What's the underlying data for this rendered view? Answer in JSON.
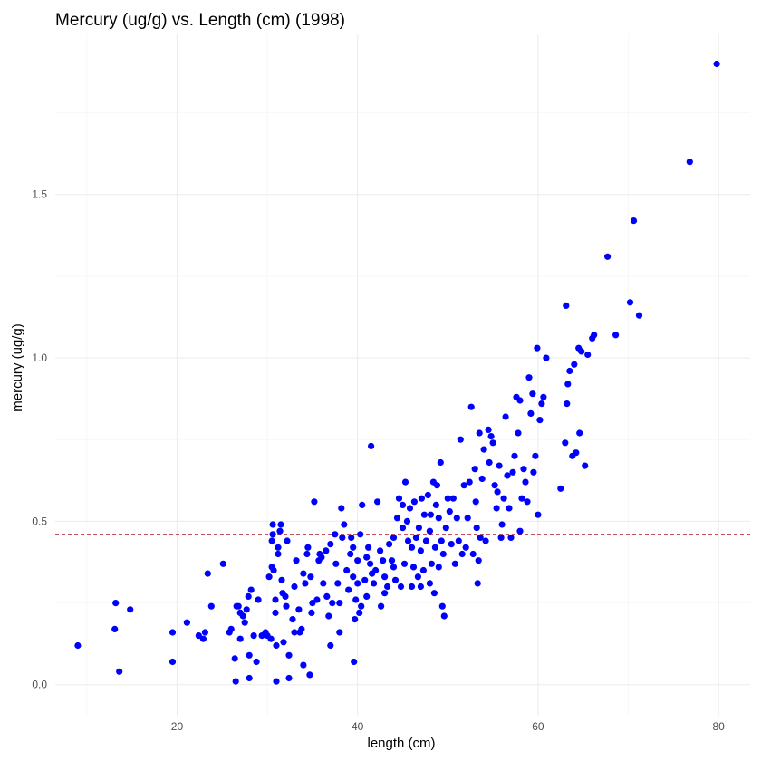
{
  "chart_data": {
    "type": "scatter",
    "title": "Mercury (ug/g) vs. Length (cm) (1998)",
    "xlabel": "length (cm)",
    "ylabel": "mercury (ug/g)",
    "xlim": [
      6.5,
      83.5
    ],
    "ylim": [
      -0.095,
      1.99
    ],
    "x_ticks": [
      20,
      40,
      60,
      80
    ],
    "x_tick_labels": [
      "20",
      "40",
      "60",
      "80"
    ],
    "y_ticks": [
      0.0,
      0.5,
      1.0,
      1.5
    ],
    "y_tick_labels": [
      "0.0",
      "0.5",
      "1.0",
      "1.5"
    ],
    "grid": true,
    "legend": "none",
    "point_color": "#0000ff",
    "reference_line": {
      "orientation": "horizontal",
      "y": 0.46,
      "color": "#b2182b",
      "style": "dashed"
    },
    "points": [
      [
        9.0,
        0.12
      ],
      [
        13.2,
        0.25
      ],
      [
        13.1,
        0.17
      ],
      [
        13.6,
        0.04
      ],
      [
        14.8,
        0.23
      ],
      [
        19.5,
        0.16
      ],
      [
        19.5,
        0.07
      ],
      [
        21.1,
        0.19
      ],
      [
        22.4,
        0.15
      ],
      [
        22.9,
        0.14
      ],
      [
        23.1,
        0.16
      ],
      [
        23.4,
        0.34
      ],
      [
        23.8,
        0.24
      ],
      [
        25.1,
        0.37
      ],
      [
        25.8,
        0.16
      ],
      [
        26.0,
        0.17
      ],
      [
        26.4,
        0.08
      ],
      [
        26.5,
        0.01
      ],
      [
        26.6,
        0.24
      ],
      [
        26.8,
        0.24
      ],
      [
        27.0,
        0.14
      ],
      [
        27.0,
        0.22
      ],
      [
        27.3,
        0.21
      ],
      [
        27.5,
        0.19
      ],
      [
        27.7,
        0.23
      ],
      [
        27.9,
        0.27
      ],
      [
        28.0,
        0.09
      ],
      [
        28.0,
        0.02
      ],
      [
        28.2,
        0.29
      ],
      [
        28.5,
        0.15
      ],
      [
        28.8,
        0.07
      ],
      [
        29.0,
        0.26
      ],
      [
        29.4,
        0.15
      ],
      [
        29.8,
        0.16
      ],
      [
        30.0,
        0.15
      ],
      [
        30.2,
        0.33
      ],
      [
        30.4,
        0.14
      ],
      [
        30.5,
        0.36
      ],
      [
        30.5,
        0.44
      ],
      [
        30.6,
        0.46
      ],
      [
        30.6,
        0.49
      ],
      [
        30.7,
        0.35
      ],
      [
        30.9,
        0.26
      ],
      [
        30.9,
        0.22
      ],
      [
        31.0,
        0.12
      ],
      [
        31.0,
        0.01
      ],
      [
        31.2,
        0.4
      ],
      [
        31.2,
        0.42
      ],
      [
        31.4,
        0.47
      ],
      [
        31.5,
        0.49
      ],
      [
        31.6,
        0.32
      ],
      [
        31.7,
        0.28
      ],
      [
        31.8,
        0.13
      ],
      [
        32.0,
        0.27
      ],
      [
        32.1,
        0.24
      ],
      [
        32.2,
        0.44
      ],
      [
        32.4,
        0.02
      ],
      [
        32.4,
        0.09
      ],
      [
        32.8,
        0.2
      ],
      [
        33.0,
        0.16
      ],
      [
        33.0,
        0.3
      ],
      [
        33.2,
        0.38
      ],
      [
        33.5,
        0.23
      ],
      [
        33.6,
        0.16
      ],
      [
        33.8,
        0.17
      ],
      [
        34.0,
        0.34
      ],
      [
        34.0,
        0.06
      ],
      [
        34.2,
        0.31
      ],
      [
        34.4,
        0.4
      ],
      [
        34.5,
        0.42
      ],
      [
        34.7,
        0.03
      ],
      [
        34.8,
        0.33
      ],
      [
        34.9,
        0.22
      ],
      [
        35.0,
        0.25
      ],
      [
        35.2,
        0.56
      ],
      [
        35.5,
        0.26
      ],
      [
        35.7,
        0.38
      ],
      [
        35.8,
        0.4
      ],
      [
        36.0,
        0.39
      ],
      [
        36.2,
        0.31
      ],
      [
        36.5,
        0.41
      ],
      [
        36.6,
        0.27
      ],
      [
        36.8,
        0.21
      ],
      [
        37.0,
        0.43
      ],
      [
        37.0,
        0.12
      ],
      [
        37.2,
        0.25
      ],
      [
        37.5,
        0.46
      ],
      [
        37.6,
        0.37
      ],
      [
        37.8,
        0.31
      ],
      [
        38.0,
        0.16
      ],
      [
        38.0,
        0.25
      ],
      [
        38.2,
        0.54
      ],
      [
        38.3,
        0.45
      ],
      [
        38.5,
        0.49
      ],
      [
        38.8,
        0.35
      ],
      [
        39.0,
        0.29
      ],
      [
        39.2,
        0.4
      ],
      [
        39.3,
        0.45
      ],
      [
        39.5,
        0.33
      ],
      [
        39.5,
        0.42
      ],
      [
        39.6,
        0.07
      ],
      [
        39.7,
        0.2
      ],
      [
        39.8,
        0.26
      ],
      [
        40.0,
        0.31
      ],
      [
        40.0,
        0.38
      ],
      [
        40.2,
        0.22
      ],
      [
        40.3,
        0.46
      ],
      [
        40.4,
        0.24
      ],
      [
        40.5,
        0.55
      ],
      [
        40.8,
        0.32
      ],
      [
        41.0,
        0.39
      ],
      [
        41.0,
        0.27
      ],
      [
        41.2,
        0.42
      ],
      [
        41.4,
        0.37
      ],
      [
        41.5,
        0.73
      ],
      [
        41.6,
        0.34
      ],
      [
        41.8,
        0.31
      ],
      [
        42.0,
        0.35
      ],
      [
        42.2,
        0.56
      ],
      [
        42.5,
        0.41
      ],
      [
        42.6,
        0.24
      ],
      [
        42.8,
        0.38
      ],
      [
        43.0,
        0.28
      ],
      [
        43.0,
        0.33
      ],
      [
        43.3,
        0.3
      ],
      [
        43.5,
        0.43
      ],
      [
        43.8,
        0.38
      ],
      [
        44.0,
        0.45
      ],
      [
        44.0,
        0.36
      ],
      [
        44.2,
        0.32
      ],
      [
        44.4,
        0.51
      ],
      [
        44.6,
        0.57
      ],
      [
        44.8,
        0.3
      ],
      [
        45.0,
        0.48
      ],
      [
        45.0,
        0.55
      ],
      [
        45.2,
        0.37
      ],
      [
        45.3,
        0.62
      ],
      [
        45.5,
        0.5
      ],
      [
        45.6,
        0.44
      ],
      [
        45.8,
        0.54
      ],
      [
        46.0,
        0.3
      ],
      [
        46.0,
        0.42
      ],
      [
        46.2,
        0.36
      ],
      [
        46.3,
        0.56
      ],
      [
        46.5,
        0.45
      ],
      [
        46.7,
        0.33
      ],
      [
        46.8,
        0.48
      ],
      [
        47.0,
        0.3
      ],
      [
        47.0,
        0.41
      ],
      [
        47.1,
        0.57
      ],
      [
        47.3,
        0.35
      ],
      [
        47.4,
        0.52
      ],
      [
        47.6,
        0.44
      ],
      [
        47.8,
        0.58
      ],
      [
        48.0,
        0.31
      ],
      [
        48.0,
        0.47
      ],
      [
        48.1,
        0.52
      ],
      [
        48.2,
        0.37
      ],
      [
        48.4,
        0.62
      ],
      [
        48.5,
        0.28
      ],
      [
        48.6,
        0.42
      ],
      [
        48.7,
        0.55
      ],
      [
        48.8,
        0.61
      ],
      [
        49.0,
        0.36
      ],
      [
        49.0,
        0.51
      ],
      [
        49.2,
        0.68
      ],
      [
        49.3,
        0.44
      ],
      [
        49.4,
        0.24
      ],
      [
        49.5,
        0.4
      ],
      [
        49.6,
        0.21
      ],
      [
        49.8,
        0.48
      ],
      [
        50.0,
        0.57
      ],
      [
        50.2,
        0.53
      ],
      [
        50.4,
        0.43
      ],
      [
        50.6,
        0.57
      ],
      [
        50.8,
        0.37
      ],
      [
        51.0,
        0.51
      ],
      [
        51.2,
        0.44
      ],
      [
        51.4,
        0.75
      ],
      [
        51.6,
        0.4
      ],
      [
        51.8,
        0.61
      ],
      [
        52.0,
        0.42
      ],
      [
        52.2,
        0.51
      ],
      [
        52.4,
        0.62
      ],
      [
        52.6,
        0.85
      ],
      [
        52.8,
        0.4
      ],
      [
        53.0,
        0.66
      ],
      [
        53.1,
        0.56
      ],
      [
        53.2,
        0.48
      ],
      [
        53.3,
        0.31
      ],
      [
        53.4,
        0.38
      ],
      [
        53.5,
        0.77
      ],
      [
        53.6,
        0.45
      ],
      [
        53.8,
        0.63
      ],
      [
        54.0,
        0.72
      ],
      [
        54.2,
        0.44
      ],
      [
        54.5,
        0.78
      ],
      [
        54.6,
        0.68
      ],
      [
        54.8,
        0.76
      ],
      [
        55.0,
        0.74
      ],
      [
        55.2,
        0.61
      ],
      [
        55.4,
        0.54
      ],
      [
        55.5,
        0.59
      ],
      [
        55.7,
        0.67
      ],
      [
        55.9,
        0.45
      ],
      [
        56.0,
        0.49
      ],
      [
        56.2,
        0.57
      ],
      [
        56.4,
        0.82
      ],
      [
        56.6,
        0.64
      ],
      [
        56.8,
        0.54
      ],
      [
        57.0,
        0.45
      ],
      [
        57.2,
        0.65
      ],
      [
        57.4,
        0.7
      ],
      [
        57.6,
        0.88
      ],
      [
        57.8,
        0.77
      ],
      [
        58.0,
        0.47
      ],
      [
        58.0,
        0.87
      ],
      [
        58.2,
        0.57
      ],
      [
        58.4,
        0.66
      ],
      [
        58.6,
        0.62
      ],
      [
        58.8,
        0.56
      ],
      [
        59.0,
        0.94
      ],
      [
        59.2,
        0.83
      ],
      [
        59.4,
        0.89
      ],
      [
        59.5,
        0.65
      ],
      [
        59.7,
        0.7
      ],
      [
        59.9,
        1.03
      ],
      [
        60.0,
        0.52
      ],
      [
        60.2,
        0.81
      ],
      [
        60.4,
        0.86
      ],
      [
        60.6,
        0.88
      ],
      [
        60.9,
        1.0
      ],
      [
        62.5,
        0.6
      ],
      [
        63.0,
        0.74
      ],
      [
        63.1,
        1.16
      ],
      [
        63.2,
        0.86
      ],
      [
        63.3,
        0.92
      ],
      [
        63.5,
        0.96
      ],
      [
        63.8,
        0.7
      ],
      [
        64.0,
        0.98
      ],
      [
        64.2,
        0.71
      ],
      [
        64.5,
        1.03
      ],
      [
        64.6,
        0.77
      ],
      [
        64.8,
        1.02
      ],
      [
        65.2,
        0.67
      ],
      [
        65.5,
        1.01
      ],
      [
        66.0,
        1.06
      ],
      [
        66.2,
        1.07
      ],
      [
        67.7,
        1.31
      ],
      [
        68.6,
        1.07
      ],
      [
        70.2,
        1.17
      ],
      [
        70.6,
        1.42
      ],
      [
        71.2,
        1.13
      ],
      [
        76.8,
        1.6
      ],
      [
        79.8,
        1.9
      ]
    ]
  }
}
